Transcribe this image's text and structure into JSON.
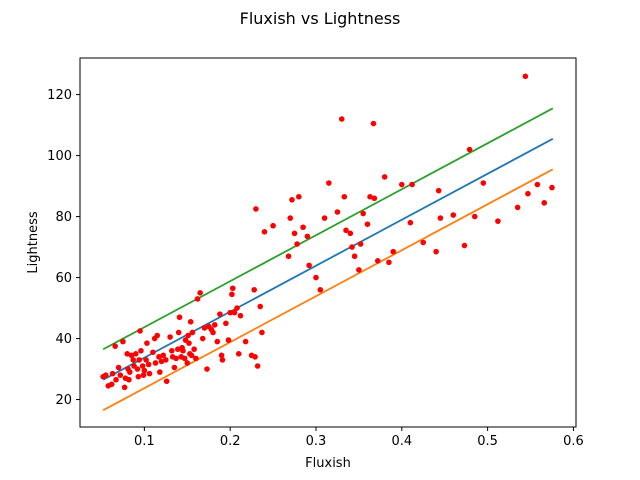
{
  "chart_data": {
    "type": "scatter",
    "title": "Fluxish vs Lightness",
    "xlabel": "Fluxish",
    "ylabel": "Lightness",
    "xlim": [
      0.025,
      0.603
    ],
    "ylim": [
      11,
      132
    ],
    "xticks": [
      0.1,
      0.2,
      0.3,
      0.4,
      0.5,
      0.6
    ],
    "xtick_labels": [
      "0.1",
      "0.2",
      "0.3",
      "0.4",
      "0.5",
      "0.6"
    ],
    "yticks": [
      20,
      40,
      60,
      80,
      100,
      120
    ],
    "ytick_labels": [
      "20",
      "40",
      "60",
      "80",
      "100",
      "120"
    ],
    "grid": false,
    "lines": [
      {
        "color": "#1f77b4",
        "x": [
          0.052,
          0.576
        ],
        "y": [
          26.5,
          105.5
        ]
      },
      {
        "color": "#ff7f0e",
        "x": [
          0.052,
          0.576
        ],
        "y": [
          16.5,
          95.5
        ]
      },
      {
        "color": "#2ca02c",
        "x": [
          0.052,
          0.576
        ],
        "y": [
          36.5,
          115.5
        ]
      }
    ],
    "scatter": {
      "color": "#ff0000",
      "points": [
        [
          0.052,
          27.5
        ],
        [
          0.055,
          28.0
        ],
        [
          0.058,
          24.5
        ],
        [
          0.062,
          25.0
        ],
        [
          0.063,
          28.5
        ],
        [
          0.066,
          37.5
        ],
        [
          0.067,
          26.5
        ],
        [
          0.07,
          30.5
        ],
        [
          0.072,
          28.0
        ],
        [
          0.075,
          39.0
        ],
        [
          0.077,
          24.0
        ],
        [
          0.078,
          27.0
        ],
        [
          0.08,
          35.0
        ],
        [
          0.081,
          30.0
        ],
        [
          0.082,
          26.5
        ],
        [
          0.083,
          29.0
        ],
        [
          0.085,
          34.5
        ],
        [
          0.087,
          33.0
        ],
        [
          0.088,
          31.0
        ],
        [
          0.09,
          35.0
        ],
        [
          0.092,
          30.0
        ],
        [
          0.093,
          27.5
        ],
        [
          0.094,
          33.0
        ],
        [
          0.095,
          42.5
        ],
        [
          0.096,
          36.0
        ],
        [
          0.098,
          31.0
        ],
        [
          0.099,
          28.0
        ],
        [
          0.1,
          29.5
        ],
        [
          0.102,
          33.0
        ],
        [
          0.103,
          38.5
        ],
        [
          0.105,
          31.5
        ],
        [
          0.106,
          28.5
        ],
        [
          0.11,
          35.5
        ],
        [
          0.112,
          40.0
        ],
        [
          0.113,
          32.0
        ],
        [
          0.115,
          41.0
        ],
        [
          0.117,
          34.0
        ],
        [
          0.118,
          29.0
        ],
        [
          0.12,
          32.5
        ],
        [
          0.122,
          34.5
        ],
        [
          0.125,
          33.0
        ],
        [
          0.126,
          26.0
        ],
        [
          0.13,
          40.5
        ],
        [
          0.132,
          36.0
        ],
        [
          0.133,
          34.0
        ],
        [
          0.135,
          30.5
        ],
        [
          0.137,
          33.5
        ],
        [
          0.139,
          36.5
        ],
        [
          0.14,
          42.0
        ],
        [
          0.141,
          47.0
        ],
        [
          0.143,
          34.0
        ],
        [
          0.144,
          37.0
        ],
        [
          0.145,
          36.0
        ],
        [
          0.147,
          33.5
        ],
        [
          0.148,
          39.5
        ],
        [
          0.15,
          32.0
        ],
        [
          0.151,
          41.0
        ],
        [
          0.152,
          38.5
        ],
        [
          0.153,
          35.0
        ],
        [
          0.154,
          45.5
        ],
        [
          0.155,
          34.5
        ],
        [
          0.156,
          42.0
        ],
        [
          0.158,
          36.5
        ],
        [
          0.16,
          33.5
        ],
        [
          0.162,
          53.0
        ],
        [
          0.165,
          55.0
        ],
        [
          0.168,
          40.0
        ],
        [
          0.17,
          43.5
        ],
        [
          0.173,
          30.0
        ],
        [
          0.175,
          44.0
        ],
        [
          0.178,
          43.0
        ],
        [
          0.18,
          42.0
        ],
        [
          0.182,
          44.5
        ],
        [
          0.185,
          39.0
        ],
        [
          0.188,
          48.0
        ],
        [
          0.19,
          34.5
        ],
        [
          0.191,
          33.0
        ],
        [
          0.195,
          45.0
        ],
        [
          0.198,
          39.5
        ],
        [
          0.2,
          48.5
        ],
        [
          0.202,
          54.5
        ],
        [
          0.203,
          56.5
        ],
        [
          0.205,
          48.5
        ],
        [
          0.208,
          50.0
        ],
        [
          0.21,
          35.0
        ],
        [
          0.212,
          47.5
        ],
        [
          0.218,
          39.0
        ],
        [
          0.225,
          34.5
        ],
        [
          0.228,
          56.0
        ],
        [
          0.229,
          34.0
        ],
        [
          0.23,
          82.5
        ],
        [
          0.232,
          31.0
        ],
        [
          0.235,
          50.5
        ],
        [
          0.237,
          42.0
        ],
        [
          0.24,
          75.0
        ],
        [
          0.25,
          77.0
        ],
        [
          0.268,
          67.0
        ],
        [
          0.27,
          79.5
        ],
        [
          0.272,
          85.5
        ],
        [
          0.275,
          74.5
        ],
        [
          0.278,
          71.0
        ],
        [
          0.28,
          86.5
        ],
        [
          0.285,
          76.5
        ],
        [
          0.29,
          73.5
        ],
        [
          0.292,
          64.0
        ],
        [
          0.3,
          60.0
        ],
        [
          0.305,
          56.0
        ],
        [
          0.31,
          79.5
        ],
        [
          0.315,
          91.0
        ],
        [
          0.325,
          81.5
        ],
        [
          0.33,
          112.0
        ],
        [
          0.333,
          86.5
        ],
        [
          0.335,
          75.5
        ],
        [
          0.34,
          74.5
        ],
        [
          0.342,
          70.0
        ],
        [
          0.345,
          67.0
        ],
        [
          0.35,
          62.5
        ],
        [
          0.352,
          71.0
        ],
        [
          0.355,
          81.0
        ],
        [
          0.36,
          77.5
        ],
        [
          0.363,
          86.5
        ],
        [
          0.367,
          110.5
        ],
        [
          0.368,
          86.0
        ],
        [
          0.372,
          65.5
        ],
        [
          0.38,
          93.0
        ],
        [
          0.385,
          65.0
        ],
        [
          0.39,
          68.5
        ],
        [
          0.4,
          90.5
        ],
        [
          0.41,
          78.0
        ],
        [
          0.412,
          90.5
        ],
        [
          0.425,
          71.5
        ],
        [
          0.44,
          68.5
        ],
        [
          0.443,
          88.5
        ],
        [
          0.445,
          79.5
        ],
        [
          0.46,
          80.5
        ],
        [
          0.473,
          70.5
        ],
        [
          0.479,
          102.0
        ],
        [
          0.485,
          80.0
        ],
        [
          0.495,
          91.0
        ],
        [
          0.512,
          78.5
        ],
        [
          0.535,
          83.0
        ],
        [
          0.544,
          126.0
        ],
        [
          0.547,
          87.5
        ],
        [
          0.558,
          90.5
        ],
        [
          0.566,
          84.5
        ],
        [
          0.575,
          89.5
        ]
      ]
    }
  }
}
